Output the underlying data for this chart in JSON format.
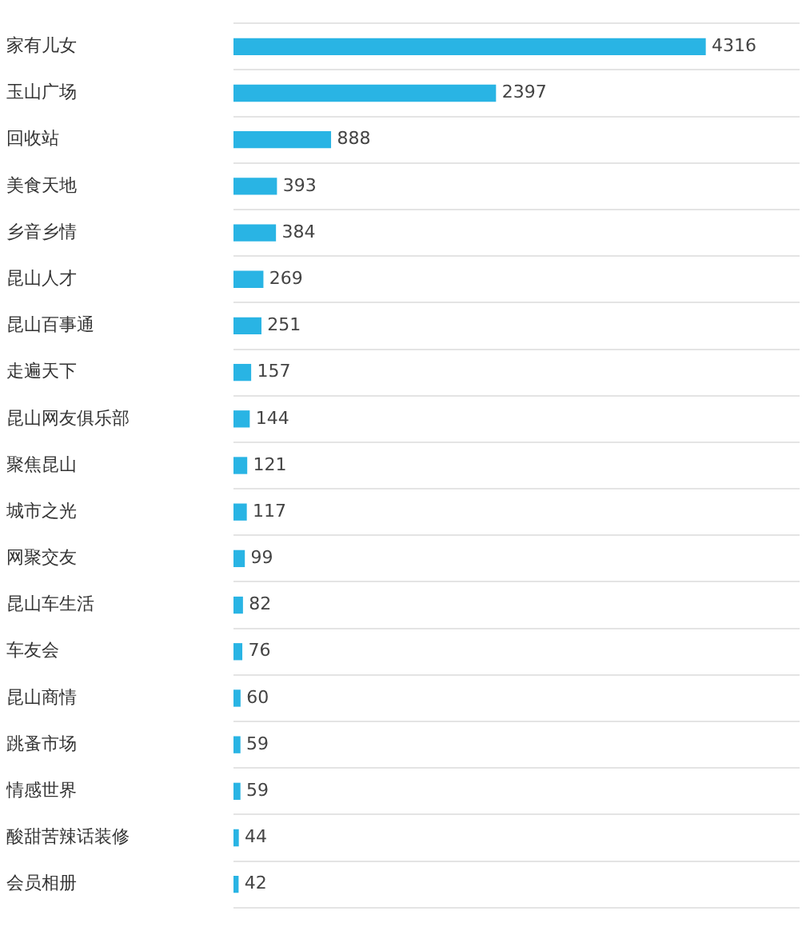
{
  "chart_data": {
    "type": "bar",
    "orientation": "horizontal",
    "categories": [
      "家有儿女",
      "玉山广场",
      "回收站",
      "美食天地",
      "乡音乡情",
      "昆山人才",
      "昆山百事通",
      "走遍天下",
      "昆山网友俱乐部",
      "聚焦昆山",
      "城市之光",
      "网聚交友",
      "昆山车生活",
      "车友会",
      "昆山商情",
      "跳蚤市场",
      "情感世界",
      "酸甜苦辣话装修",
      "会员相册"
    ],
    "values": [
      4316,
      2397,
      888,
      393,
      384,
      269,
      251,
      157,
      144,
      121,
      117,
      99,
      82,
      76,
      60,
      59,
      59,
      44,
      42
    ],
    "color": "#29b4e4",
    "data_labels": true,
    "grid": "y",
    "tick_labels": "y"
  }
}
